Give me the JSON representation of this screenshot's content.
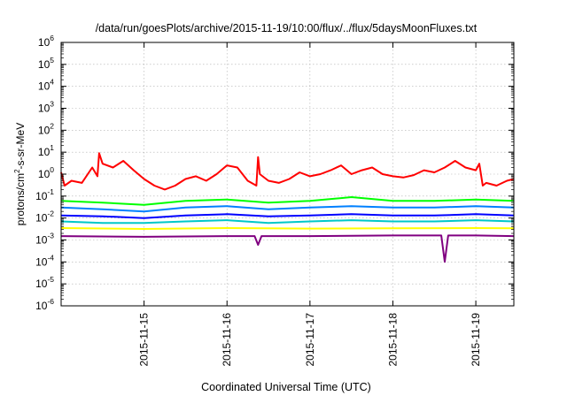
{
  "chart_data": {
    "type": "line",
    "title": "/data/run/goesPlots/archive/2015-11-19/10:00/flux/../flux/5daysMoonFluxes.txt",
    "xlabel": "Coordinated Universal Time (UTC)",
    "ylabel_parts": {
      "base": "protons/cm",
      "sup": "2",
      "rest": "-s-sr-MeV"
    },
    "x_range": [
      "2015-11-14T00:00Z",
      "2015-11-19T11:00Z"
    ],
    "x_ticks": [
      "2015-11-15",
      "2015-11-16",
      "2015-11-17",
      "2015-11-18",
      "2015-11-19"
    ],
    "y_scale": "log",
    "ylim": [
      1e-06,
      1000000.0
    ],
    "y_ticks": [
      {
        "value": 1e-06,
        "base": "10",
        "exp": "-6"
      },
      {
        "value": 1e-05,
        "base": "10",
        "exp": "-5"
      },
      {
        "value": 0.0001,
        "base": "10",
        "exp": "-4"
      },
      {
        "value": 0.001,
        "base": "10",
        "exp": "-3"
      },
      {
        "value": 0.01,
        "base": "10",
        "exp": "-2"
      },
      {
        "value": 0.1,
        "base": "10",
        "exp": "-1"
      },
      {
        "value": 1,
        "base": "10",
        "exp": "0"
      },
      {
        "value": 10.0,
        "base": "10",
        "exp": "1"
      },
      {
        "value": 100.0,
        "base": "10",
        "exp": "2"
      },
      {
        "value": 1000.0,
        "base": "10",
        "exp": "3"
      },
      {
        "value": 10000.0,
        "base": "10",
        "exp": "4"
      },
      {
        "value": 100000.0,
        "base": "10",
        "exp": "5"
      },
      {
        "value": 1000000.0,
        "base": "10",
        "exp": "6"
      }
    ],
    "grid": true,
    "legend": "none",
    "series": [
      {
        "color": "#ff0000",
        "points": [
          [
            "2015-11-14T00:00Z",
            1.2
          ],
          [
            "2015-11-14T01:00Z",
            0.3
          ],
          [
            "2015-11-14T03:00Z",
            0.5
          ],
          [
            "2015-11-14T06:00Z",
            0.4
          ],
          [
            "2015-11-14T09:00Z",
            2
          ],
          [
            "2015-11-14T10:30Z",
            0.8
          ],
          [
            "2015-11-14T11:00Z",
            9
          ],
          [
            "2015-11-14T12:00Z",
            3
          ],
          [
            "2015-11-14T15:00Z",
            2
          ],
          [
            "2015-11-14T18:00Z",
            4
          ],
          [
            "2015-11-14T21:00Z",
            1.5
          ],
          [
            "2015-11-15T00:00Z",
            0.6
          ],
          [
            "2015-11-15T03:00Z",
            0.3
          ],
          [
            "2015-11-15T06:00Z",
            0.2
          ],
          [
            "2015-11-15T09:00Z",
            0.3
          ],
          [
            "2015-11-15T12:00Z",
            0.6
          ],
          [
            "2015-11-15T15:00Z",
            0.8
          ],
          [
            "2015-11-15T18:00Z",
            0.5
          ],
          [
            "2015-11-15T21:00Z",
            1
          ],
          [
            "2015-11-16T00:00Z",
            2.5
          ],
          [
            "2015-11-16T03:00Z",
            2
          ],
          [
            "2015-11-16T06:00Z",
            0.5
          ],
          [
            "2015-11-16T08:30Z",
            0.3
          ],
          [
            "2015-11-16T09:00Z",
            6
          ],
          [
            "2015-11-16T09:30Z",
            1
          ],
          [
            "2015-11-16T12:00Z",
            0.5
          ],
          [
            "2015-11-16T15:00Z",
            0.4
          ],
          [
            "2015-11-16T18:00Z",
            0.6
          ],
          [
            "2015-11-16T21:00Z",
            1.2
          ],
          [
            "2015-11-17T00:00Z",
            0.8
          ],
          [
            "2015-11-17T03:00Z",
            1
          ],
          [
            "2015-11-17T06:00Z",
            1.5
          ],
          [
            "2015-11-17T09:00Z",
            2.5
          ],
          [
            "2015-11-17T12:00Z",
            1
          ],
          [
            "2015-11-17T15:00Z",
            1.5
          ],
          [
            "2015-11-17T18:00Z",
            2
          ],
          [
            "2015-11-17T21:00Z",
            1
          ],
          [
            "2015-11-18T00:00Z",
            0.8
          ],
          [
            "2015-11-18T03:00Z",
            0.7
          ],
          [
            "2015-11-18T06:00Z",
            0.9
          ],
          [
            "2015-11-18T09:00Z",
            1.5
          ],
          [
            "2015-11-18T12:00Z",
            1.2
          ],
          [
            "2015-11-18T15:00Z",
            2
          ],
          [
            "2015-11-18T18:00Z",
            4
          ],
          [
            "2015-11-18T21:00Z",
            2
          ],
          [
            "2015-11-19T00:00Z",
            1.5
          ],
          [
            "2015-11-19T01:00Z",
            3
          ],
          [
            "2015-11-19T02:00Z",
            0.3
          ],
          [
            "2015-11-19T03:00Z",
            0.4
          ],
          [
            "2015-11-19T06:00Z",
            0.3
          ],
          [
            "2015-11-19T09:00Z",
            0.5
          ],
          [
            "2015-11-19T11:00Z",
            0.6
          ]
        ]
      },
      {
        "color": "#00ff00",
        "points": [
          [
            "2015-11-14T00:00Z",
            0.06
          ],
          [
            "2015-11-14T12:00Z",
            0.05
          ],
          [
            "2015-11-15T00:00Z",
            0.04
          ],
          [
            "2015-11-15T12:00Z",
            0.06
          ],
          [
            "2015-11-16T00:00Z",
            0.07
          ],
          [
            "2015-11-16T12:00Z",
            0.05
          ],
          [
            "2015-11-17T00:00Z",
            0.06
          ],
          [
            "2015-11-17T12:00Z",
            0.09
          ],
          [
            "2015-11-18T00:00Z",
            0.06
          ],
          [
            "2015-11-18T12:00Z",
            0.06
          ],
          [
            "2015-11-19T00:00Z",
            0.07
          ],
          [
            "2015-11-19T11:00Z",
            0.06
          ]
        ]
      },
      {
        "color": "#0080ff",
        "points": [
          [
            "2015-11-14T00:00Z",
            0.03
          ],
          [
            "2015-11-14T12:00Z",
            0.025
          ],
          [
            "2015-11-15T00:00Z",
            0.02
          ],
          [
            "2015-11-15T12:00Z",
            0.03
          ],
          [
            "2015-11-16T00:00Z",
            0.035
          ],
          [
            "2015-11-16T12:00Z",
            0.025
          ],
          [
            "2015-11-17T00:00Z",
            0.03
          ],
          [
            "2015-11-17T12:00Z",
            0.035
          ],
          [
            "2015-11-18T00:00Z",
            0.03
          ],
          [
            "2015-11-18T12:00Z",
            0.03
          ],
          [
            "2015-11-19T00:00Z",
            0.035
          ],
          [
            "2015-11-19T11:00Z",
            0.03
          ]
        ]
      },
      {
        "color": "#0000ff",
        "points": [
          [
            "2015-11-14T00:00Z",
            0.013
          ],
          [
            "2015-11-14T12:00Z",
            0.012
          ],
          [
            "2015-11-15T00:00Z",
            0.01
          ],
          [
            "2015-11-15T12:00Z",
            0.013
          ],
          [
            "2015-11-16T00:00Z",
            0.015
          ],
          [
            "2015-11-16T12:00Z",
            0.012
          ],
          [
            "2015-11-17T00:00Z",
            0.013
          ],
          [
            "2015-11-17T12:00Z",
            0.015
          ],
          [
            "2015-11-18T00:00Z",
            0.013
          ],
          [
            "2015-11-18T12:00Z",
            0.013
          ],
          [
            "2015-11-19T00:00Z",
            0.015
          ],
          [
            "2015-11-19T11:00Z",
            0.013
          ]
        ]
      },
      {
        "color": "#00c8c8",
        "points": [
          [
            "2015-11-14T00:00Z",
            0.007
          ],
          [
            "2015-11-14T12:00Z",
            0.006
          ],
          [
            "2015-11-15T00:00Z",
            0.006
          ],
          [
            "2015-11-15T12:00Z",
            0.007
          ],
          [
            "2015-11-16T00:00Z",
            0.008
          ],
          [
            "2015-11-16T12:00Z",
            0.006
          ],
          [
            "2015-11-17T00:00Z",
            0.007
          ],
          [
            "2015-11-17T12:00Z",
            0.008
          ],
          [
            "2015-11-18T00:00Z",
            0.007
          ],
          [
            "2015-11-18T12:00Z",
            0.007
          ],
          [
            "2015-11-19T00:00Z",
            0.008
          ],
          [
            "2015-11-19T11:00Z",
            0.007
          ]
        ]
      },
      {
        "color": "#ffff00",
        "points": [
          [
            "2015-11-14T00:00Z",
            0.0035
          ],
          [
            "2015-11-15T00:00Z",
            0.0032
          ],
          [
            "2015-11-16T00:00Z",
            0.0035
          ],
          [
            "2015-11-17T00:00Z",
            0.0033
          ],
          [
            "2015-11-18T00:00Z",
            0.0034
          ],
          [
            "2015-11-19T00:00Z",
            0.0035
          ],
          [
            "2015-11-19T11:00Z",
            0.0034
          ]
        ]
      },
      {
        "color": "#800080",
        "points": [
          [
            "2015-11-14T00:00Z",
            0.0015
          ],
          [
            "2015-11-15T00:00Z",
            0.0014
          ],
          [
            "2015-11-16T00:00Z",
            0.0015
          ],
          [
            "2015-11-16T08:00Z",
            0.0015
          ],
          [
            "2015-11-16T09:00Z",
            0.0006
          ],
          [
            "2015-11-16T10:00Z",
            0.0015
          ],
          [
            "2015-11-17T00:00Z",
            0.0015
          ],
          [
            "2015-11-18T00:00Z",
            0.0016
          ],
          [
            "2015-11-18T14:00Z",
            0.0016
          ],
          [
            "2015-11-18T15:00Z",
            0.0001
          ],
          [
            "2015-11-18T16:00Z",
            0.0016
          ],
          [
            "2015-11-19T00:00Z",
            0.0016
          ],
          [
            "2015-11-19T11:00Z",
            0.0015
          ]
        ]
      }
    ]
  }
}
